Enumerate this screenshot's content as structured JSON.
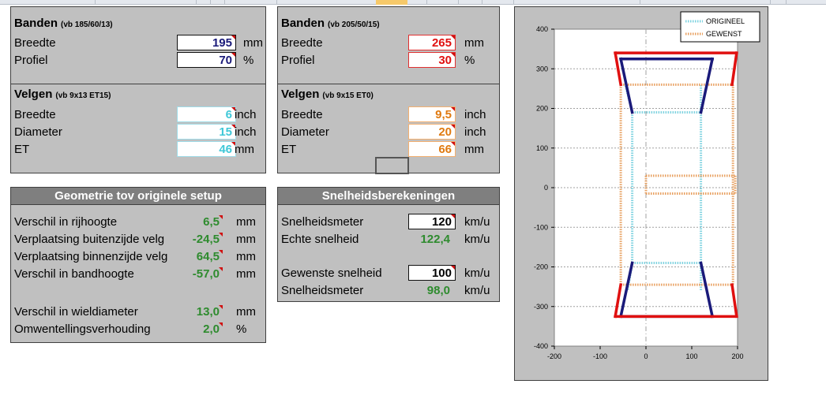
{
  "current_tyre": {
    "title": "Banden",
    "hint": "(vb 185/60/13)",
    "rows": [
      {
        "label": "Breedte",
        "value": "195",
        "unit": "mm"
      },
      {
        "label": "Profiel",
        "value": "70",
        "unit": "%"
      }
    ]
  },
  "current_rim": {
    "title": "Velgen",
    "hint": "(vb 9x13 ET15)",
    "rows": [
      {
        "label": "Breedte",
        "value": "6",
        "unit": "inch"
      },
      {
        "label": "Diameter",
        "value": "15",
        "unit": "inch"
      },
      {
        "label": "ET",
        "value": "46",
        "unit": "mm"
      }
    ]
  },
  "new_tyre": {
    "title": "Banden",
    "hint": "(vb 205/50/15)",
    "rows": [
      {
        "label": "Breedte",
        "value": "265",
        "unit": "mm"
      },
      {
        "label": "Profiel",
        "value": "30",
        "unit": "%"
      }
    ]
  },
  "new_rim": {
    "title": "Velgen",
    "hint": "(vb 9x15 ET0)",
    "rows": [
      {
        "label": "Breedte",
        "value": "9,5",
        "unit": "inch"
      },
      {
        "label": "Diameter",
        "value": "20",
        "unit": "inch"
      },
      {
        "label": "ET",
        "value": "66",
        "unit": "mm"
      }
    ]
  },
  "geometry": {
    "title": "Geometrie tov originele setup",
    "rows": [
      {
        "label": "Verschil in rijhoogte",
        "value": "6,5",
        "unit": "mm"
      },
      {
        "label": "Verplaatsing buitenzijde velg",
        "value": "-24,5",
        "unit": "mm"
      },
      {
        "label": "Verplaatsing binnenzijde velg",
        "value": "64,5",
        "unit": "mm"
      },
      {
        "label": "Verschil in bandhoogte",
        "value": "-57,0",
        "unit": "mm"
      },
      {
        "label": "Verschil in wieldiameter",
        "value": "13,0",
        "unit": "mm"
      },
      {
        "label": "Omwentellingsverhouding",
        "value": "2,0",
        "unit": "%"
      }
    ]
  },
  "speed": {
    "title": "Snelheidsberekeningen",
    "speedometer_label": "Snelheidsmeter",
    "speedometer_value": "120",
    "speedometer_unit": "km/u",
    "real_label": "Echte snelheid",
    "real_value": "122,4",
    "real_unit": "km/u",
    "wanted_label": "Gewenste snelheid",
    "wanted_value": "100",
    "wanted_unit": "km/u",
    "meter2_label": "Snelheidsmeter",
    "meter2_value": "98,0",
    "meter2_unit": "km/u"
  },
  "colors": {
    "dark_blue": "#1a1a7a",
    "red": "#e01010",
    "cyan": "#40c8d8",
    "orange": "#e07a10",
    "green": "#2e8b2e"
  },
  "chart_data": {
    "type": "line",
    "xlim": [
      -200,
      200
    ],
    "ylim": [
      -400,
      400
    ],
    "x_ticks": [
      "-200",
      "-100",
      "0",
      "100",
      "200"
    ],
    "y_ticks": [
      "400",
      "300",
      "200",
      "100",
      "0",
      "-100",
      "-200",
      "-300",
      "-400"
    ],
    "legend": [
      "ORIGINEEL",
      "GEWENST"
    ],
    "legend_position": "top-right",
    "series": [
      {
        "name": "ORIGINEEL",
        "color": "#7fd3e0",
        "dashed": true,
        "segments": [
          [
            [
              -30,
              190
            ],
            [
              -30,
              -190
            ]
          ],
          [
            [
              120,
              190
            ],
            [
              120,
              -190
            ]
          ],
          [
            [
              -30,
              190
            ],
            [
              120,
              190
            ]
          ],
          [
            [
              -30,
              -190
            ],
            [
              120,
              -190
            ]
          ],
          [
            [
              -30,
              190
            ],
            [
              -45,
              260
            ]
          ],
          [
            [
              120,
              190
            ],
            [
              120,
              260
            ]
          ],
          [
            [
              -30,
              -190
            ],
            [
              -40,
              -260
            ]
          ],
          [
            [
              120,
              -190
            ],
            [
              120,
              -260
            ]
          ]
        ]
      },
      {
        "name": "GEWENST",
        "color": "#e8a060",
        "dashed": true,
        "segments": [
          [
            [
              -55,
              260
            ],
            [
              190,
              260
            ]
          ],
          [
            [
              -55,
              -245
            ],
            [
              190,
              -245
            ]
          ],
          [
            [
              -55,
              260
            ],
            [
              -55,
              -245
            ]
          ],
          [
            [
              190,
              260
            ],
            [
              190,
              -245
            ]
          ],
          [
            [
              0,
              30
            ],
            [
              195,
              30
            ]
          ],
          [
            [
              0,
              -15
            ],
            [
              195,
              -15
            ]
          ],
          [
            [
              0,
              30
            ],
            [
              0,
              -15
            ]
          ],
          [
            [
              195,
              30
            ],
            [
              195,
              -15
            ]
          ]
        ]
      },
      {
        "name": "tyre-current",
        "color": "#1a1a7a",
        "dashed": false,
        "segments": [
          [
            [
              -55,
              325
            ],
            [
              145,
              325
            ]
          ],
          [
            [
              -55,
              -325
            ],
            [
              145,
              -325
            ]
          ],
          [
            [
              -55,
              325
            ],
            [
              -30,
              190
            ]
          ],
          [
            [
              145,
              325
            ],
            [
              120,
              190
            ]
          ],
          [
            [
              -55,
              -325
            ],
            [
              -30,
              -190
            ]
          ],
          [
            [
              145,
              -325
            ],
            [
              120,
              -190
            ]
          ]
        ]
      },
      {
        "name": "tyre-new",
        "color": "#e01010",
        "dashed": false,
        "segments": [
          [
            [
              -67,
              340
            ],
            [
              198,
              340
            ]
          ],
          [
            [
              -67,
              -325
            ],
            [
              198,
              -325
            ]
          ],
          [
            [
              -67,
              340
            ],
            [
              -55,
              260
            ]
          ],
          [
            [
              198,
              340
            ],
            [
              188,
              260
            ]
          ],
          [
            [
              -67,
              -325
            ],
            [
              -55,
              -245
            ]
          ],
          [
            [
              198,
              -325
            ],
            [
              188,
              -245
            ]
          ]
        ]
      }
    ]
  }
}
